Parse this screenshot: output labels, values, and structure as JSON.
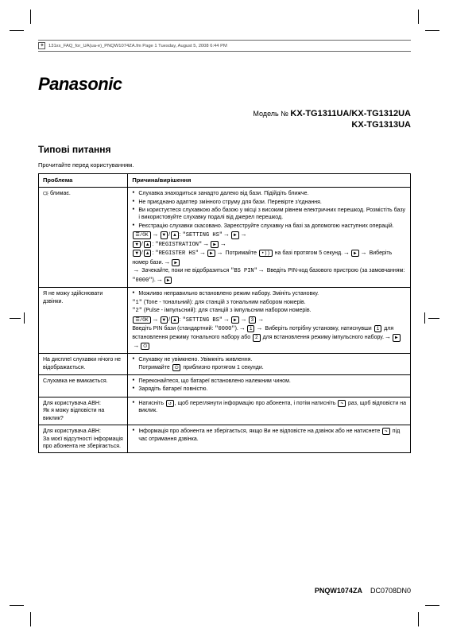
{
  "meta_line": "131xx_FAQ_for_UA(ua-e)_PNQW1074ZA.fm  Page 1  Tuesday, August 5, 2008  6:44 PM",
  "brand": "Panasonic",
  "model_label": "Модель №",
  "models_line1": "KX-TG1311UA/KX-TG1312UA",
  "models_line2": "KX-TG1313UA",
  "section_title": "Типові питання",
  "subtitle": "Прочитайте перед користуванням.",
  "table": {
    "head_problem": "Проблема",
    "head_cause": "Причина/вирішення",
    "rows": [
      {
        "problem_html": "<svg class='icon-blink' viewBox='0 0 10 10'><rect x='1' y='2' width='6' height='5' rx='1' fill='none' stroke='#000' stroke-width='0.7'/><line x1='7' y1='3' x2='9' y2='1' stroke='#000' stroke-width='0.7'/><line x1='7' y1='6' x2='9' y2='8' stroke='#000' stroke-width='0.7'/><line x1='8' y1='4.5' x2='10' y2='4.5' stroke='#000' stroke-width='0.7'/></svg> блимає.",
        "cause_html": "<ul><li>Слухавка знаходиться занадто далеко від бази. Підійдіть ближче.</li><li>Не приєднано адаптер змінного струму для бази. Перевірте з'єднання.</li><li>Ви користуєтеся слухавкою або базою у місці з високим рівнем електричних перешкод. Розмістіть базу і використовуйте слухавку подалі від джерел перешкод.</li><li>Реєстрацію слухавки скасовано. Зареєструйте слухавку на базі за допомогою наступних операцій.</li></ul><span class='btn'>☰/OK</span><span class='arrow'>→</span><span class='btn'>▼</span>/<span class='btn'>▲</span>: <span class='mono'>\"SETTING HS\"</span><span class='arrow'>→</span><span class='btn'>▶</span><span class='arrow'>→</span><br><span class='btn'>▼</span>/<span class='btn'>▲</span>: <span class='mono'>\"REGISTRATION\"</span><span class='arrow'>→</span><span class='btn'>▶</span><span class='arrow'>→</span><br><span class='btn'>▼</span>/<span class='btn'>▲</span>: <span class='mono'>\"REGISTER HS\"</span><span class='arrow'>→</span><span class='btn'>▶</span><span class='arrow'>→</span> Потримайте <span class='btn'>•))</span> на базі протягом 5 секунд.<span class='arrow'>→</span><span class='btn'>▶</span><span class='arrow'>→</span> Виберіть номер бази.<span class='arrow'>→</span><span class='btn'>▶</span><br><span class='arrow'>→</span> Зачекайте, поки не відобразиться <span class='mono'>\"BS PIN\"</span><span class='arrow'>→</span> Введіть PIN-код базового пристрою (за замовчанням: <span class='mono'>\"0000\"</span>).<span class='arrow'>→</span><span class='btn'>▶</span>"
      },
      {
        "problem_html": "Я не можу здійснювати дзвінки.",
        "cause_html": "<ul><li>Можливо неправильно встановлено режим набору. Змініть установку.</li></ul><span class='mono'>\"1\"</span> (Tone - тональний): для станцій з тональним набором номерів.<br><span class='mono'>\"2\"</span> (Pulse - імпульсний): для станцій з імпульсним набором номерів.<br><span class='btn'>☰/OK</span><span class='arrow'>→</span><span class='btn'>▼</span>/<span class='btn'>▲</span>: <span class='mono'>\"SETTING BS\"</span><span class='arrow'>→</span><span class='btn'>▶</span><span class='arrow'>→</span><span class='btn'>3</span><span class='arrow'>→</span><br>Введіть PIN бази (стандартний: <span class='mono'>\"0000\"</span>).<span class='arrow'>→</span><span class='btn'>1</span><span class='arrow'>→</span> Виберіть потрібну установку, натиснувши <span class='btn'>1</span> для встановлення режиму тонального набору або <span class='btn'>2</span> для встановлення режиму імпульсного набору.<span class='arrow'>→</span><span class='btn'>▶</span><span class='arrow'>→</span><span class='btn'>⏻</span>"
      },
      {
        "problem_html": "На дисплеї слухавки нічого не відображається.",
        "cause_html": "<ul><li>Слухавку не увімкнено. Увімкніть живлення.<br>Потримайте <span class='btn'>⏻</span> приблизно протягом 1 секунди.</li></ul>"
      },
      {
        "problem_html": "Слухавка не вмикається.",
        "cause_html": "<ul><li>Переконайтеся, що батареї встановлено належним чином.</li><li>Зарядіть батареї повністю.</li></ul>"
      },
      {
        "problem_html": "Для користувача АВН:<br>Як я можу відповісти на виклик?",
        "cause_html": "<ul><li>Натисніть <span class='btn'>↺</span>, щоб переглянути інформацію про абонента, і потім натисніть <span class='btn'>↷</span> раз, щоб відповісти на виклик.</li></ul>"
      },
      {
        "problem_html": "Для користувача АВН:<br>За моєї відсутності інформація про абонента не зберігається.",
        "cause_html": "<ul><li>Інформація про абонента не зберігається, якщо Ви не відповісте на дзвінок або не натиснете <span class='btn'>↷</span> під час отримання дзвінка.</li></ul>"
      }
    ]
  },
  "footer_code": "PNQW1074ZA",
  "footer_sub": "DC0708DN0"
}
